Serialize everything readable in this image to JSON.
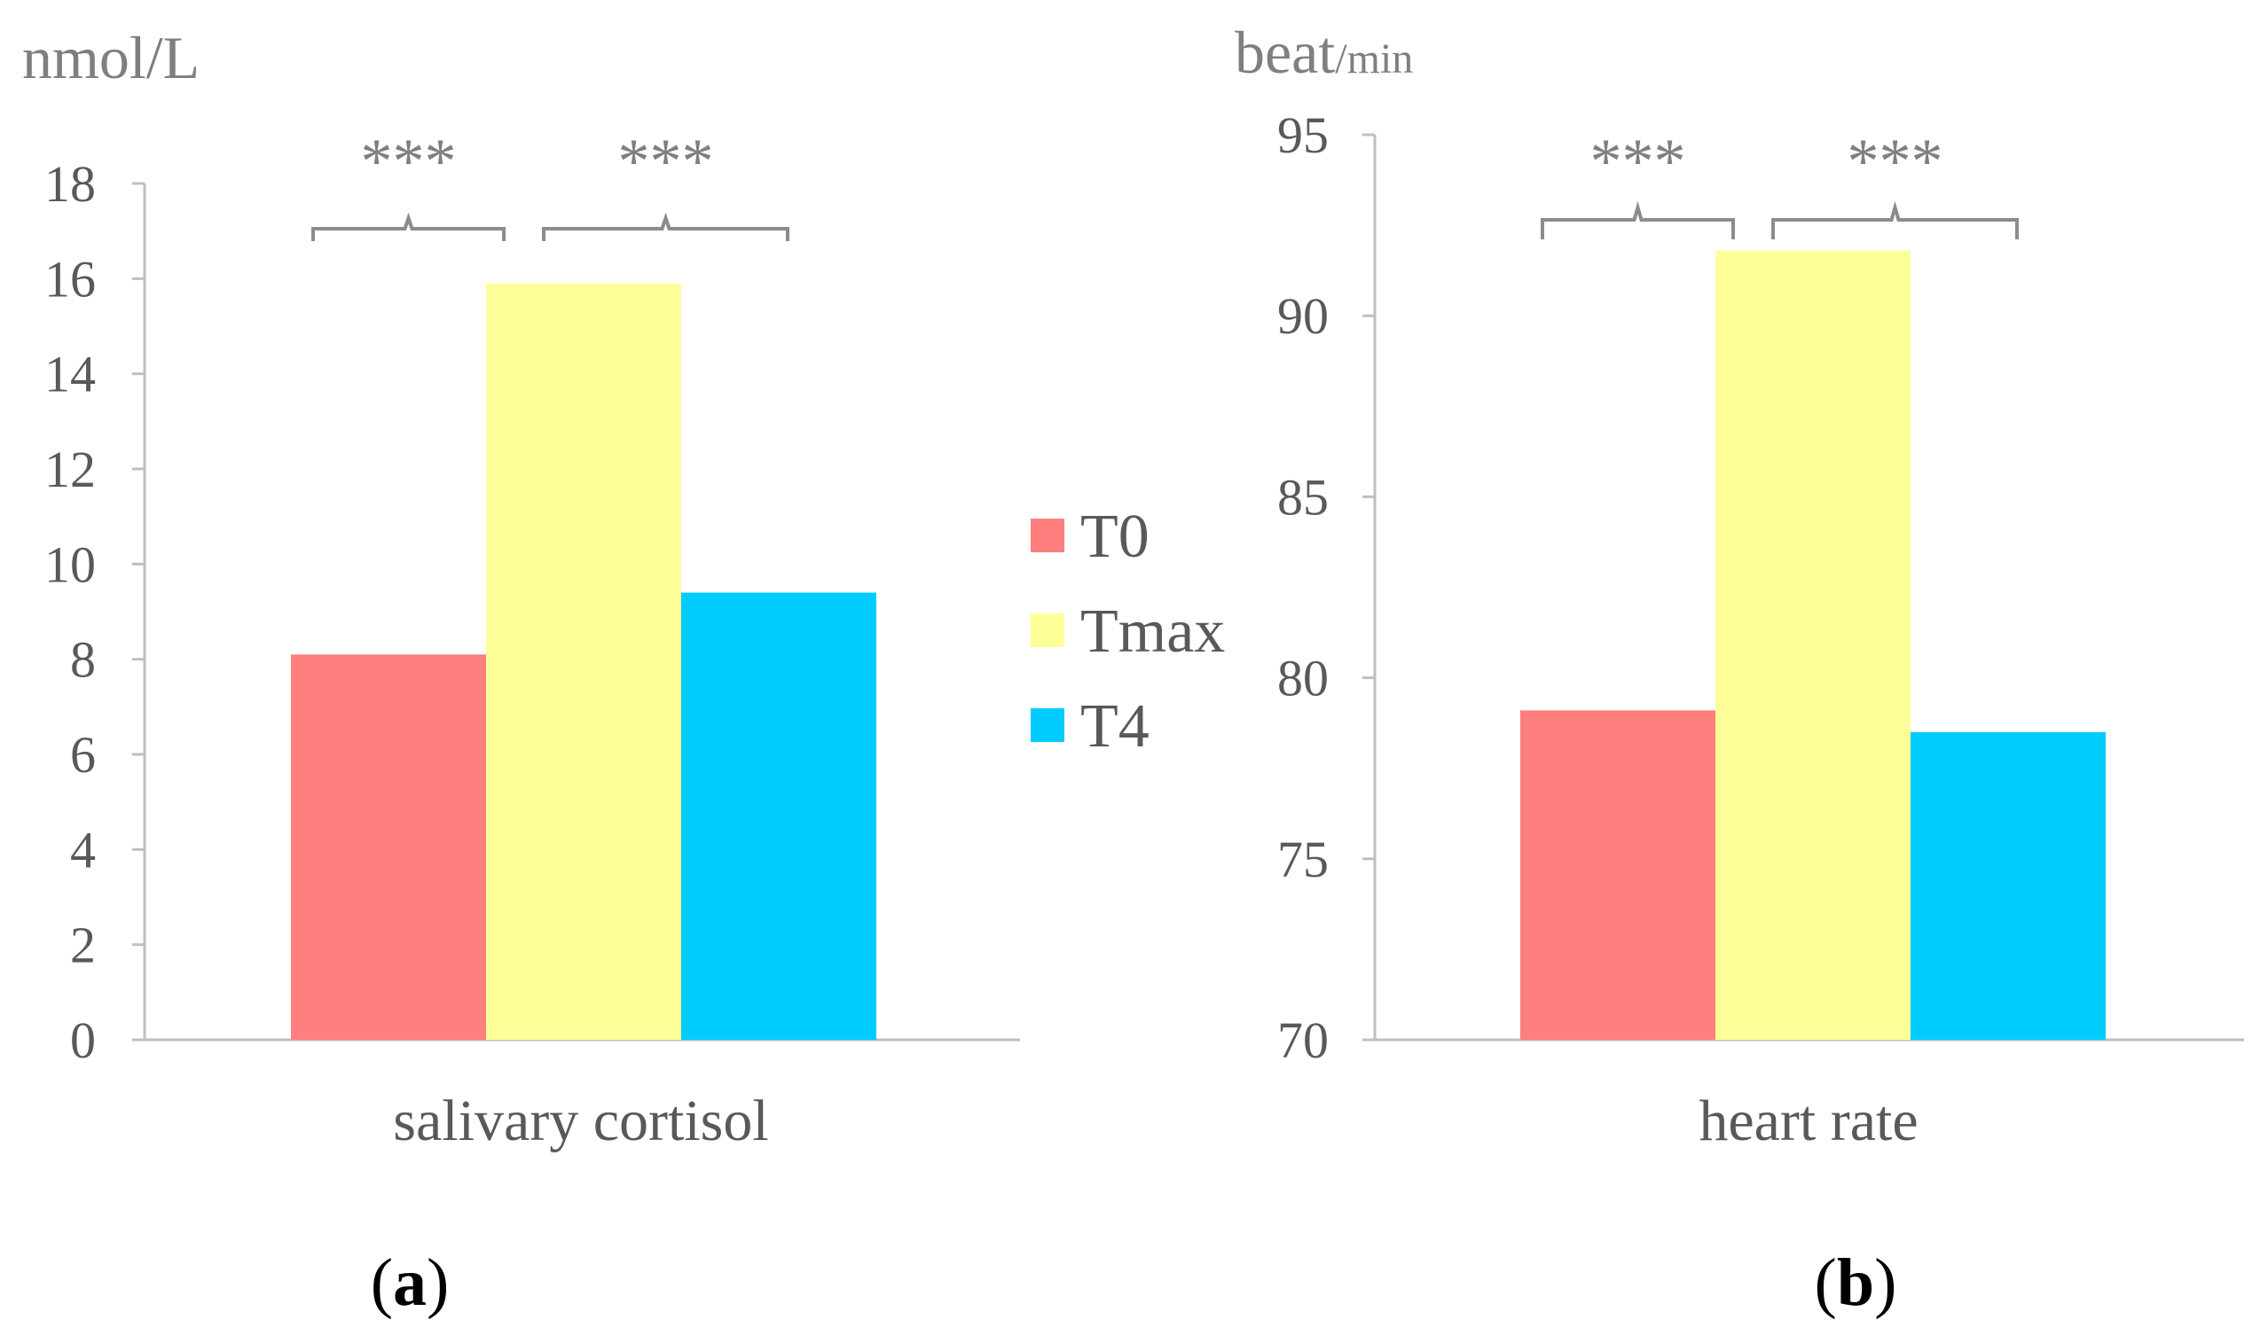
{
  "chart_data": [
    {
      "type": "bar",
      "panel_label": "a",
      "unit_label": "nmol/L",
      "category": "salivary cortisol",
      "series": [
        {
          "name": "T0",
          "value": 8.1
        },
        {
          "name": "Tmax",
          "value": 15.9
        },
        {
          "name": "T4",
          "value": 9.4
        }
      ],
      "ylim": [
        0,
        18
      ],
      "yticks": [
        "0",
        "2",
        "4",
        "6",
        "8",
        "10",
        "12",
        "14",
        "16",
        "18"
      ],
      "significance": [
        {
          "from": "T0",
          "to": "Tmax",
          "label": "***"
        },
        {
          "from": "Tmax",
          "to": "T4",
          "label": "***"
        }
      ]
    },
    {
      "type": "bar",
      "panel_label": "b",
      "unit_label": {
        "main": "beat",
        "sub": "/min"
      },
      "category": "heart rate",
      "series": [
        {
          "name": "T0",
          "value": 79.1
        },
        {
          "name": "Tmax",
          "value": 91.8
        },
        {
          "name": "T4",
          "value": 78.5
        }
      ],
      "ylim": [
        70,
        95
      ],
      "yticks": [
        "70",
        "75",
        "80",
        "85",
        "90",
        "95"
      ],
      "significance": [
        {
          "from": "T0",
          "to": "Tmax",
          "label": "***"
        },
        {
          "from": "Tmax",
          "to": "T4",
          "label": "***"
        }
      ]
    }
  ],
  "legend": {
    "placement": "between-panels",
    "items": [
      {
        "name": "T0",
        "color": "#ff7f7f"
      },
      {
        "name": "Tmax",
        "color": "#ffff99"
      },
      {
        "name": "T4",
        "color": "#00ccff"
      }
    ]
  }
}
